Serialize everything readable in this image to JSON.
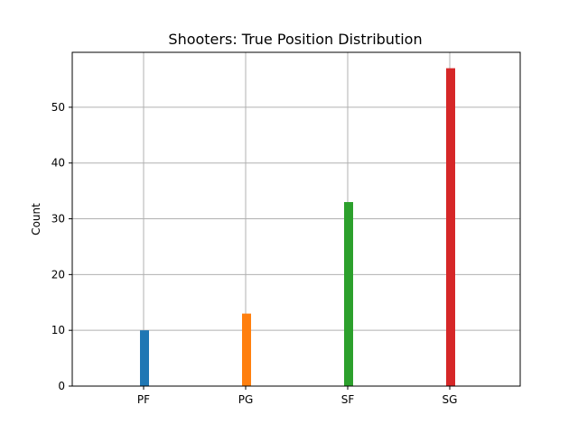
{
  "chart_data": {
    "type": "bar",
    "title": "Shooters: True Position Distribution",
    "xlabel": "",
    "ylabel": "Count",
    "categories": [
      "PF",
      "PG",
      "SF",
      "SG"
    ],
    "values": [
      10,
      13,
      33,
      57
    ],
    "colors": [
      "#1f77b4",
      "#ff7f0e",
      "#2ca02c",
      "#d62728"
    ],
    "ylim": [
      0,
      59.85
    ],
    "yticks": [
      0,
      10,
      20,
      30,
      40,
      50
    ],
    "grid": true,
    "legend": "none"
  }
}
